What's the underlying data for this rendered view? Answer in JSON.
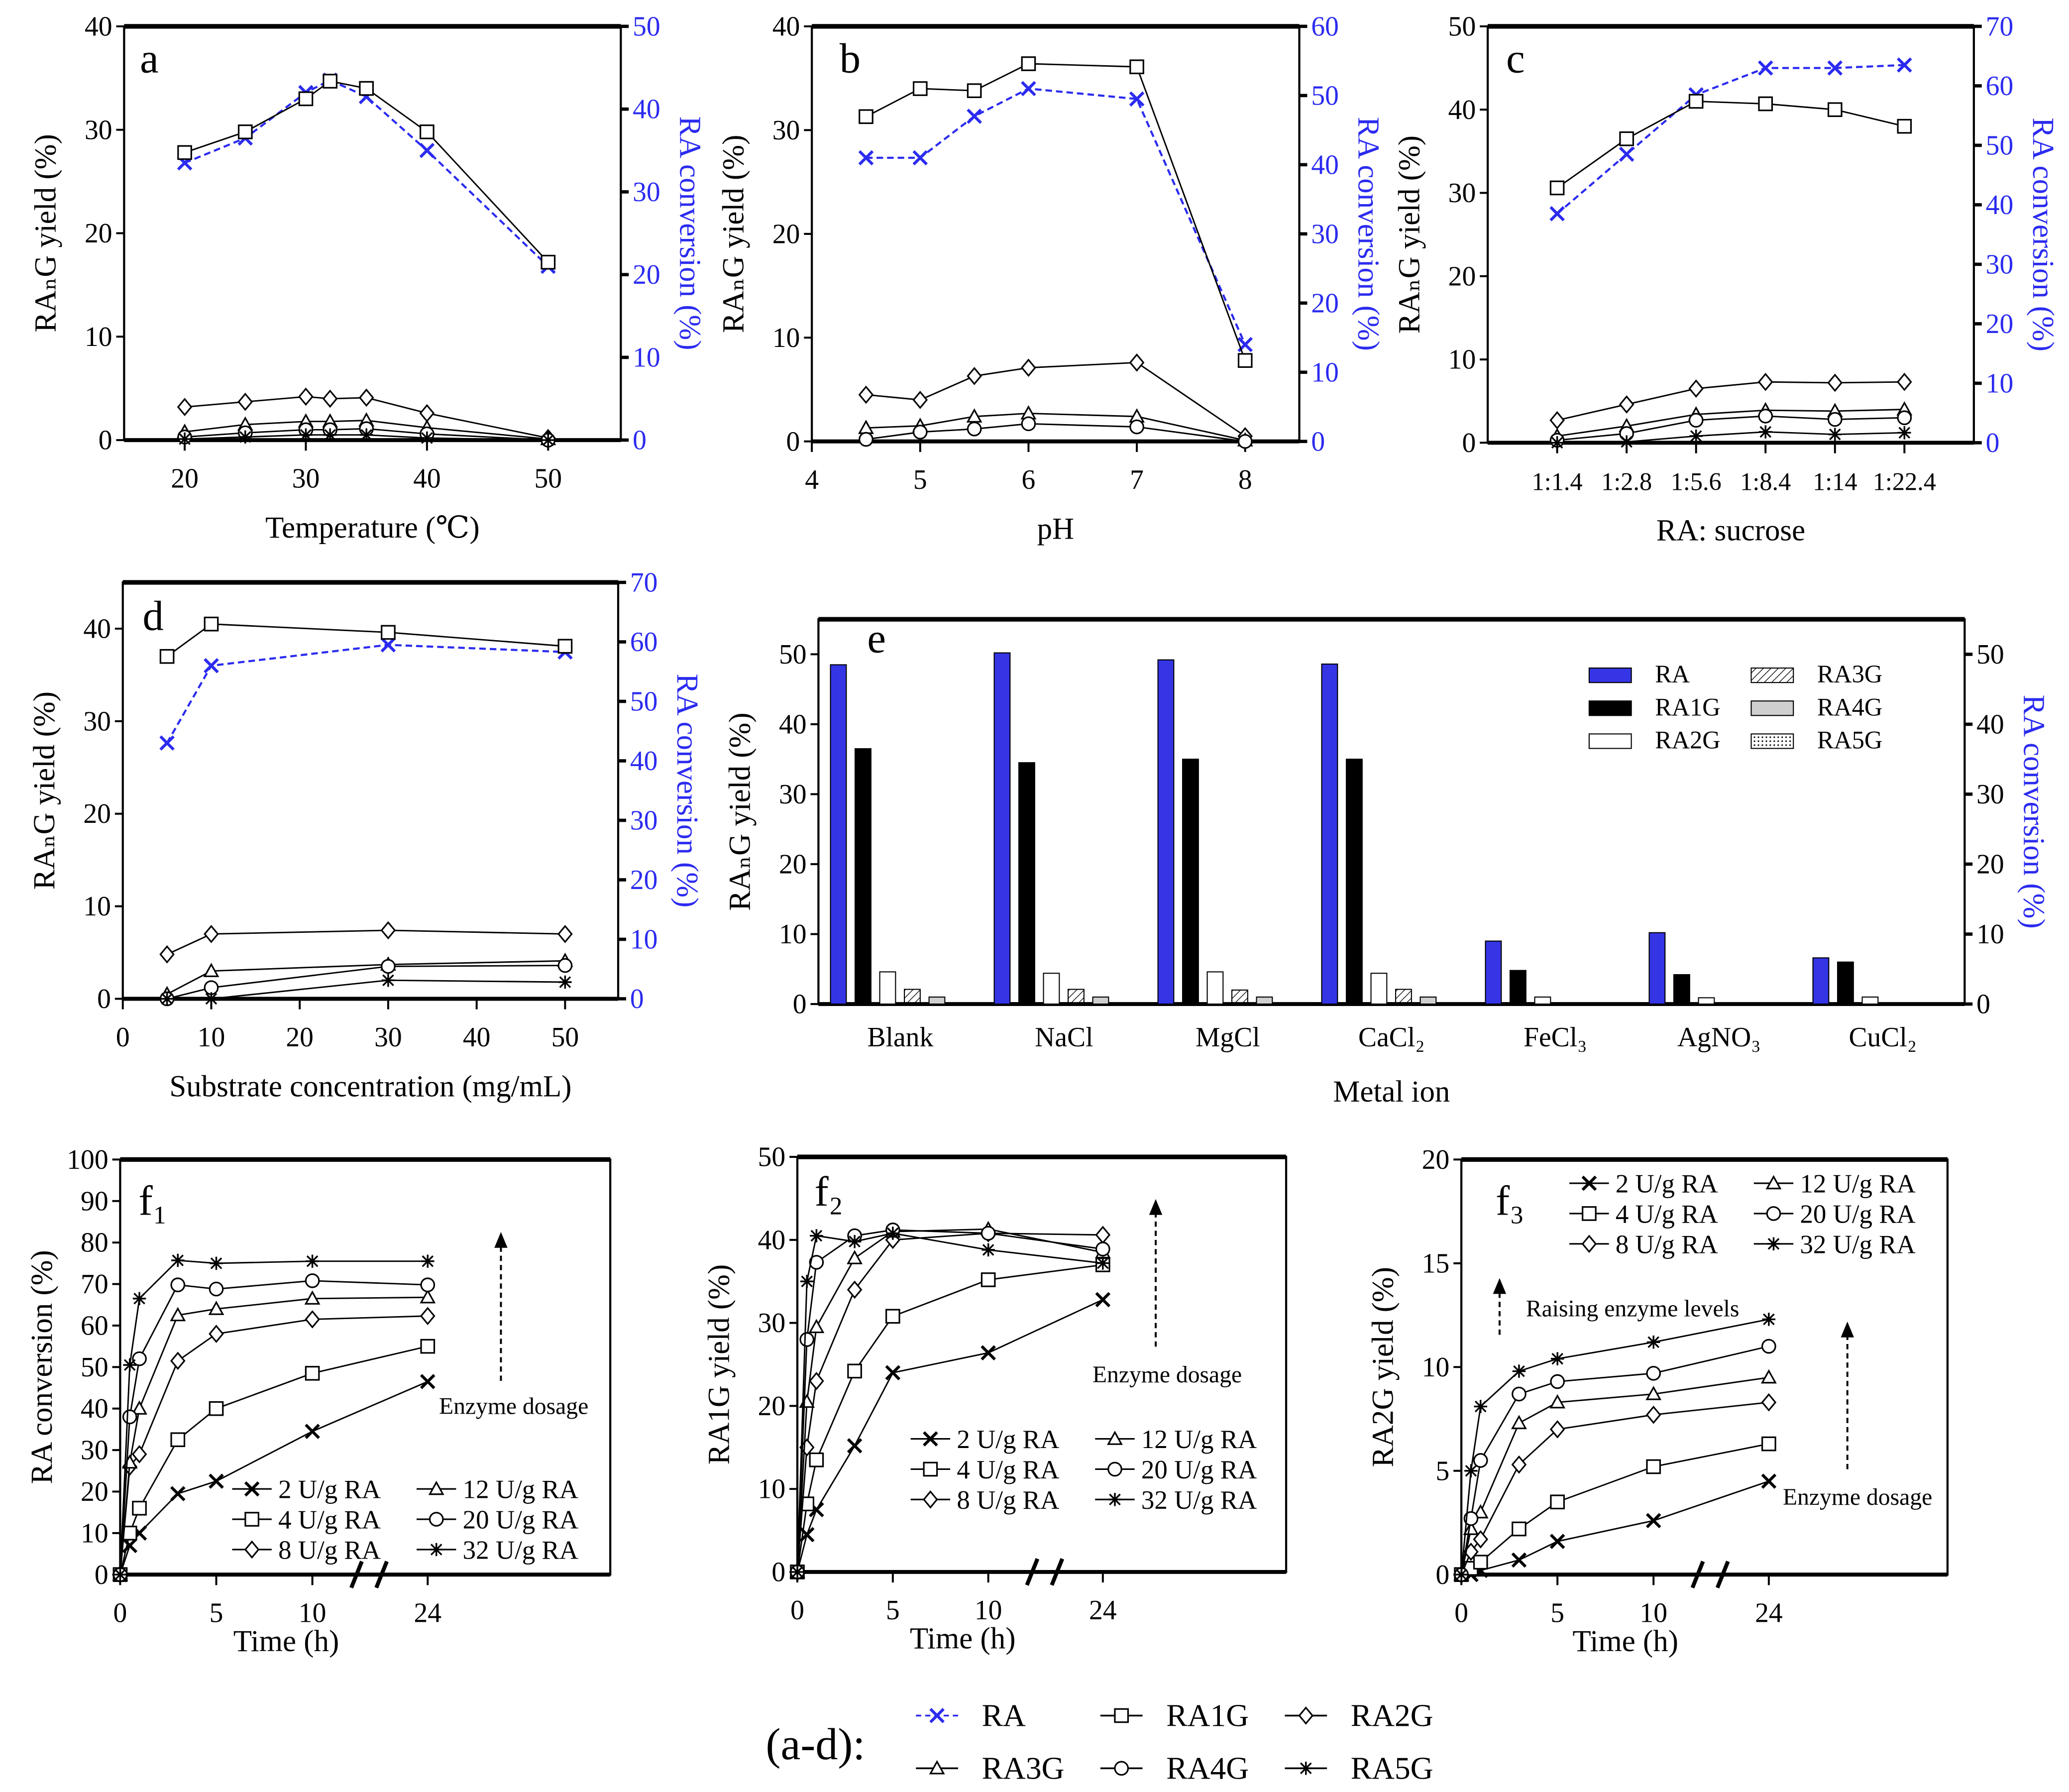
{
  "colors": {
    "ra": "#2b2bf0",
    "ink": "#000000",
    "bar_ra": "#3535e6",
    "bar_ra4g": "#cfcfcf"
  },
  "chart_data": [
    {
      "id": "a",
      "type": "line",
      "label": "a",
      "xlabel": "Temperature (℃)",
      "ylabel": "RAₙG yield (%)",
      "y2label": "RA conversion (%)",
      "xlim": [
        15,
        56
      ],
      "ylim": [
        0,
        40
      ],
      "y2lim": [
        0,
        50
      ],
      "xticks": [
        20,
        30,
        40,
        50
      ],
      "yticks": [
        0,
        10,
        20,
        30,
        40
      ],
      "y2ticks": [
        0,
        10,
        20,
        30,
        40,
        50
      ],
      "x": [
        20,
        25,
        30,
        32,
        35,
        40,
        50
      ],
      "series": [
        {
          "name": "RA",
          "axis": "right",
          "marker": "x",
          "values": [
            33.5,
            36.5,
            42,
            43.5,
            41.5,
            35,
            21
          ]
        },
        {
          "name": "RA1G",
          "axis": "left",
          "marker": "square",
          "values": [
            27.8,
            29.8,
            33,
            34.7,
            34,
            29.8,
            17.2
          ]
        },
        {
          "name": "RA2G",
          "axis": "left",
          "marker": "diamond",
          "values": [
            3.2,
            3.7,
            4.2,
            4.0,
            4.1,
            2.6,
            0.2
          ]
        },
        {
          "name": "RA3G",
          "axis": "left",
          "marker": "triangle",
          "values": [
            0.8,
            1.5,
            1.8,
            1.8,
            1.9,
            1.2,
            0.1
          ]
        },
        {
          "name": "RA4G",
          "axis": "left",
          "marker": "circle",
          "values": [
            0.3,
            0.7,
            1.0,
            1.0,
            1.1,
            0.6,
            0
          ]
        },
        {
          "name": "RA5G",
          "axis": "left",
          "marker": "star",
          "values": [
            0.1,
            0.3,
            0.5,
            0.5,
            0.5,
            0.2,
            0
          ]
        }
      ]
    },
    {
      "id": "b",
      "type": "line",
      "label": "b",
      "xlabel": "pH",
      "ylabel": "RAₙG yield (%)",
      "y2label": "RA conversion (%)",
      "xlim": [
        4,
        8.5
      ],
      "ylim": [
        0,
        40
      ],
      "y2lim": [
        0,
        60
      ],
      "xticks": [
        4,
        5,
        6,
        7,
        8
      ],
      "yticks": [
        0,
        10,
        20,
        30,
        40
      ],
      "y2ticks": [
        0,
        10,
        20,
        30,
        40,
        50,
        60
      ],
      "x": [
        4.5,
        5,
        5.5,
        6,
        7,
        8
      ],
      "series": [
        {
          "name": "RA",
          "axis": "right",
          "marker": "x",
          "values": [
            41,
            41,
            47,
            51,
            49.5,
            14
          ]
        },
        {
          "name": "RA1G",
          "axis": "left",
          "marker": "square",
          "values": [
            31.3,
            34,
            33.8,
            36.4,
            36.1,
            7.8
          ]
        },
        {
          "name": "RA2G",
          "axis": "left",
          "marker": "diamond",
          "values": [
            4.5,
            4.0,
            6.3,
            7.1,
            7.6,
            0.5
          ]
        },
        {
          "name": "RA3G",
          "axis": "left",
          "marker": "triangle",
          "values": [
            1.3,
            1.5,
            2.4,
            2.7,
            2.4,
            0.1
          ]
        },
        {
          "name": "RA4G",
          "axis": "left",
          "marker": "circle",
          "values": [
            0.2,
            0.9,
            1.2,
            1.7,
            1.4,
            0
          ]
        }
      ]
    },
    {
      "id": "c",
      "type": "line",
      "label": "c",
      "xlabel": "RA: sucrose",
      "ylabel": "RAₙG yield (%)",
      "y2label": "RA conversion (%)",
      "xlim": [
        -1,
        6
      ],
      "ylim": [
        0,
        50
      ],
      "y2lim": [
        0,
        70
      ],
      "categories": [
        "1:1.4",
        "1:2.8",
        "1:5.6",
        "1:8.4",
        "1:14",
        "1:22.4"
      ],
      "yticks": [
        0,
        10,
        20,
        30,
        40,
        50
      ],
      "y2ticks": [
        0,
        10,
        20,
        30,
        40,
        50,
        60,
        70
      ],
      "series": [
        {
          "name": "RA",
          "axis": "right",
          "marker": "x",
          "values": [
            38.5,
            48.5,
            58.5,
            63,
            63,
            63.5
          ]
        },
        {
          "name": "RA1G",
          "axis": "left",
          "marker": "square",
          "values": [
            30.6,
            36.5,
            41,
            40.7,
            40,
            38
          ]
        },
        {
          "name": "RA2G",
          "axis": "left",
          "marker": "diamond",
          "values": [
            2.7,
            4.6,
            6.5,
            7.3,
            7.2,
            7.3
          ]
        },
        {
          "name": "RA3G",
          "axis": "left",
          "marker": "triangle",
          "values": [
            0.8,
            2.0,
            3.4,
            3.9,
            3.8,
            4.0
          ]
        },
        {
          "name": "RA4G",
          "axis": "left",
          "marker": "circle",
          "values": [
            0.3,
            1.1,
            2.7,
            3.2,
            2.8,
            3.0
          ]
        },
        {
          "name": "RA5G",
          "axis": "left",
          "marker": "star",
          "values": [
            0,
            0.1,
            0.8,
            1.3,
            1.0,
            1.2
          ]
        }
      ]
    },
    {
      "id": "d",
      "type": "line",
      "label": "d",
      "xlabel": "Substrate concentration (mg/mL)",
      "ylabel": "RAₙG yield (%)",
      "y2label": "RA conversion (%)",
      "xlim": [
        0,
        56
      ],
      "ylim": [
        0,
        45
      ],
      "y2lim": [
        0,
        70
      ],
      "xticks": [
        0,
        10,
        20,
        30,
        40,
        50
      ],
      "yticks": [
        0,
        10,
        20,
        30,
        40
      ],
      "y2ticks": [
        0,
        10,
        20,
        30,
        40,
        50,
        60,
        70
      ],
      "x": [
        5,
        10,
        30,
        50
      ],
      "series": [
        {
          "name": "RA",
          "axis": "right",
          "marker": "x",
          "values": [
            43,
            56,
            59.5,
            58.3
          ]
        },
        {
          "name": "RA1G",
          "axis": "left",
          "marker": "square",
          "values": [
            37,
            40.5,
            39.6,
            38.1
          ]
        },
        {
          "name": "RA2G",
          "axis": "left",
          "marker": "diamond",
          "values": [
            4.8,
            7.0,
            7.4,
            7.0
          ]
        },
        {
          "name": "RA3G",
          "axis": "left",
          "marker": "triangle",
          "values": [
            0.5,
            3.0,
            3.7,
            4.1
          ]
        },
        {
          "name": "RA4G",
          "axis": "left",
          "marker": "circle",
          "values": [
            0,
            1.2,
            3.5,
            3.6
          ]
        },
        {
          "name": "RA5G",
          "axis": "left",
          "marker": "star",
          "values": [
            0,
            0,
            2.0,
            1.8
          ]
        }
      ]
    },
    {
      "id": "e",
      "type": "bar",
      "label": "e",
      "xlabel": "Metal ion",
      "ylabel": "RAₙG yield (%)",
      "y2label": "RA conversion (%)",
      "ylim": [
        0,
        55
      ],
      "yticks": [
        0,
        10,
        20,
        30,
        40,
        50
      ],
      "y2ticks": [
        0,
        10,
        20,
        30,
        40,
        50
      ],
      "categories": [
        "Blank",
        "NaCl",
        "MgCl",
        "CaCl₂",
        "FeCl₃",
        "AgNO₃",
        "CuCl₂"
      ],
      "series": [
        {
          "name": "RA",
          "fill": "ra",
          "values": [
            48.5,
            50.2,
            49.2,
            48.6,
            9.0,
            10.2,
            6.6
          ]
        },
        {
          "name": "RA1G",
          "fill": "black",
          "values": [
            36.5,
            34.5,
            35.0,
            35.0,
            4.8,
            4.2,
            6.0
          ]
        },
        {
          "name": "RA2G",
          "fill": "white",
          "values": [
            4.6,
            4.4,
            4.6,
            4.4,
            1.0,
            0.9,
            1.0
          ]
        },
        {
          "name": "RA3G",
          "fill": "hatch",
          "values": [
            2.1,
            2.1,
            2.0,
            2.1,
            0,
            0,
            0
          ]
        },
        {
          "name": "RA4G",
          "fill": "gray",
          "values": [
            1.0,
            1.0,
            1.0,
            1.0,
            0,
            0,
            0
          ]
        },
        {
          "name": "RA5G",
          "fill": "dots",
          "values": [
            0,
            0,
            0,
            0,
            0,
            0,
            0
          ]
        }
      ],
      "legend": "top-right"
    },
    {
      "id": "f1",
      "type": "line",
      "label": "f₁",
      "xlabel": "Time (h)",
      "ylabel": "RA conversion (%)",
      "xlim": [
        0,
        25.5
      ],
      "ylim": [
        0,
        100
      ],
      "axis_break": [
        12,
        24
      ],
      "xticks": [
        0,
        5,
        10,
        24
      ],
      "yticks": [
        0,
        10,
        20,
        30,
        40,
        50,
        60,
        70,
        80,
        90,
        100
      ],
      "x": [
        0,
        0.5,
        1,
        3,
        5,
        10,
        24
      ],
      "series": [
        {
          "name": "2 U/g RA",
          "marker": "x",
          "values": [
            0,
            7,
            10,
            19.5,
            22.5,
            34.5,
            46.5
          ]
        },
        {
          "name": "4 U/g RA",
          "marker": "square",
          "values": [
            0,
            10,
            16,
            32.5,
            40,
            48.5,
            55
          ]
        },
        {
          "name": "8 U/g RA",
          "marker": "diamond",
          "values": [
            0,
            26,
            29,
            51.5,
            58,
            61.5,
            62.3
          ]
        },
        {
          "name": "12 U/g RA",
          "marker": "triangle",
          "values": [
            0,
            27,
            40,
            62.5,
            64,
            66.5,
            66.8
          ]
        },
        {
          "name": "20 U/g RA",
          "marker": "circle",
          "values": [
            0,
            38,
            52,
            69.8,
            68.8,
            70.8,
            69.8
          ]
        },
        {
          "name": "32 U/g RA",
          "marker": "star",
          "values": [
            0,
            50.5,
            66.5,
            75.7,
            75,
            75.5,
            75.5
          ]
        }
      ],
      "annotations": [
        "Enzyme dosage"
      ]
    },
    {
      "id": "f2",
      "type": "line",
      "label": "f₂",
      "xlabel": "Time (h)",
      "ylabel": "RA1G yield (%)",
      "xlim": [
        0,
        25.6
      ],
      "ylim": [
        0,
        50
      ],
      "axis_break": [
        12,
        24
      ],
      "xticks": [
        0,
        5,
        10,
        24
      ],
      "yticks": [
        0,
        10,
        20,
        30,
        40,
        50
      ],
      "x": [
        0,
        0.5,
        1,
        3,
        5,
        10,
        24
      ],
      "series": [
        {
          "name": "2 U/g RA",
          "marker": "x",
          "values": [
            0,
            4.5,
            7.5,
            15.2,
            24,
            26.4,
            32.8
          ]
        },
        {
          "name": "4 U/g RA",
          "marker": "square",
          "values": [
            0,
            8.2,
            13.5,
            24.2,
            30.8,
            35.2,
            37
          ]
        },
        {
          "name": "8 U/g RA",
          "marker": "diamond",
          "values": [
            0,
            15,
            23,
            34,
            40,
            40.8,
            40.6
          ]
        },
        {
          "name": "12 U/g RA",
          "marker": "triangle",
          "values": [
            0,
            20.5,
            29.5,
            37.8,
            41,
            41.3,
            38.5
          ]
        },
        {
          "name": "20 U/g RA",
          "marker": "circle",
          "values": [
            0,
            28,
            37.3,
            40.5,
            41.2,
            40.8,
            38.9
          ]
        },
        {
          "name": "32 U/g RA",
          "marker": "star",
          "values": [
            0,
            35,
            40.5,
            39.8,
            40.8,
            38.8,
            37.2
          ]
        }
      ],
      "annotations": [
        "Enzyme dosage"
      ]
    },
    {
      "id": "f3",
      "type": "line",
      "label": "f₃",
      "xlabel": "Time (h)",
      "ylabel": "RA2G yield (%)",
      "xlim": [
        0,
        25.3
      ],
      "ylim": [
        0,
        20
      ],
      "axis_break": [
        12,
        24
      ],
      "xticks": [
        0,
        5,
        10,
        24
      ],
      "yticks": [
        0,
        5,
        10,
        15,
        20
      ],
      "x": [
        0,
        0.5,
        1,
        3,
        5,
        10,
        24
      ],
      "series": [
        {
          "name": "2 U/g RA",
          "marker": "x",
          "values": [
            0,
            0,
            0.2,
            0.7,
            1.6,
            2.6,
            4.5
          ]
        },
        {
          "name": "4 U/g RA",
          "marker": "square",
          "values": [
            0,
            0.3,
            0.6,
            2.2,
            3.5,
            5.2,
            6.3
          ]
        },
        {
          "name": "8 U/g RA",
          "marker": "diamond",
          "values": [
            0,
            1.1,
            1.7,
            5.3,
            7.0,
            7.7,
            8.3
          ]
        },
        {
          "name": "12 U/g RA",
          "marker": "triangle",
          "values": [
            0,
            2.2,
            3.0,
            7.3,
            8.3,
            8.7,
            9.5
          ]
        },
        {
          "name": "20 U/g RA",
          "marker": "circle",
          "values": [
            0,
            2.7,
            5.5,
            8.7,
            9.3,
            9.7,
            11.0
          ]
        },
        {
          "name": "32 U/g RA",
          "marker": "star",
          "values": [
            0,
            5.0,
            8.1,
            9.8,
            10.4,
            11.2,
            12.3
          ]
        }
      ],
      "annotations": [
        "Raising enzyme levels",
        "Enzyme dosage"
      ]
    }
  ],
  "global_legend": {
    "title": "(a-d):",
    "items": [
      {
        "name": "RA",
        "marker": "x"
      },
      {
        "name": "RA1G",
        "marker": "square"
      },
      {
        "name": "RA2G",
        "marker": "diamond"
      },
      {
        "name": "RA3G",
        "marker": "triangle"
      },
      {
        "name": "RA4G",
        "marker": "circle"
      },
      {
        "name": "RA5G",
        "marker": "star"
      }
    ]
  }
}
